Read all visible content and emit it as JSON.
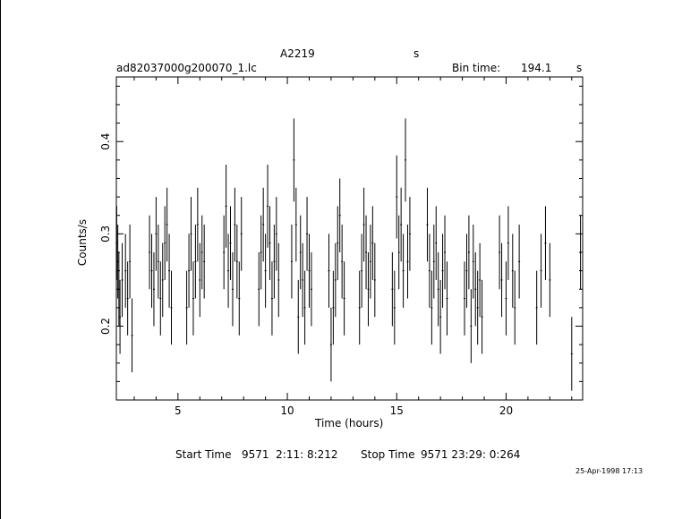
{
  "chart_data": {
    "type": "scatter",
    "title": "A2219",
    "title_suffix": "s",
    "file_label": "ad82037000g200070_1.lc",
    "bin_time_label": "Bin time:",
    "bin_time_value": "194.1",
    "bin_time_unit": "s",
    "xlabel": "Time (hours)",
    "ylabel": "Counts/s",
    "xlim": [
      2.183,
      23.5
    ],
    "ylim": [
      0.12,
      0.47
    ],
    "xticks": [
      5,
      10,
      15,
      20
    ],
    "yticks": [
      0.2,
      0.3,
      0.4
    ],
    "xtick_labels": [
      "5",
      "10",
      "15",
      "20"
    ],
    "ytick_labels": [
      "0.2",
      "0.3",
      "0.4"
    ],
    "error_bars": true,
    "series": [
      {
        "x": [
          2.2,
          2.25,
          2.3,
          2.35,
          2.45,
          2.6,
          2.7,
          2.8,
          2.9,
          3.7,
          3.8,
          3.9,
          4.0,
          4.1,
          4.2,
          4.3,
          4.4,
          4.5,
          4.6,
          4.7,
          5.4,
          5.5,
          5.6,
          5.7,
          5.8,
          5.9,
          6.0,
          6.1,
          6.2,
          7.1,
          7.2,
          7.3,
          7.4,
          7.5,
          7.6,
          7.7,
          7.8,
          7.9,
          8.7,
          8.8,
          8.9,
          9.0,
          9.1,
          9.2,
          9.3,
          9.4,
          9.5,
          9.6,
          10.2,
          10.3,
          10.4,
          10.5,
          10.6,
          10.7,
          10.8,
          10.9,
          11.0,
          11.1,
          11.9,
          12.0,
          12.1,
          12.2,
          12.3,
          12.4,
          12.5,
          12.6,
          13.3,
          13.4,
          13.5,
          13.6,
          13.7,
          13.8,
          13.9,
          14.0,
          14.8,
          14.9,
          15.0,
          15.1,
          15.2,
          15.3,
          15.4,
          15.5,
          15.6,
          16.4,
          16.5,
          16.6,
          16.7,
          16.8,
          16.9,
          17.0,
          17.1,
          17.2,
          17.3,
          18.1,
          18.2,
          18.3,
          18.4,
          18.5,
          18.6,
          18.7,
          18.8,
          18.9,
          19.7,
          19.8,
          20.0,
          20.1,
          20.3,
          20.4,
          20.6,
          21.4,
          21.6,
          21.8,
          22.0,
          23.0,
          23.4
        ],
        "y": [
          0.29,
          0.27,
          0.24,
          0.21,
          0.25,
          0.26,
          0.23,
          0.27,
          0.19,
          0.28,
          0.26,
          0.24,
          0.3,
          0.27,
          0.23,
          0.25,
          0.29,
          0.31,
          0.26,
          0.22,
          0.22,
          0.26,
          0.3,
          0.23,
          0.27,
          0.31,
          0.25,
          0.28,
          0.27,
          0.28,
          0.33,
          0.26,
          0.29,
          0.24,
          0.31,
          0.27,
          0.23,
          0.3,
          0.24,
          0.28,
          0.31,
          0.26,
          0.33,
          0.29,
          0.23,
          0.27,
          0.3,
          0.25,
          0.27,
          0.38,
          0.31,
          0.21,
          0.28,
          0.25,
          0.22,
          0.3,
          0.26,
          0.24,
          0.26,
          0.18,
          0.22,
          0.25,
          0.29,
          0.32,
          0.27,
          0.23,
          0.22,
          0.26,
          0.31,
          0.28,
          0.24,
          0.27,
          0.29,
          0.25,
          0.24,
          0.22,
          0.34,
          0.28,
          0.31,
          0.26,
          0.38,
          0.27,
          0.3,
          0.31,
          0.26,
          0.22,
          0.27,
          0.29,
          0.24,
          0.21,
          0.26,
          0.28,
          0.23,
          0.23,
          0.26,
          0.28,
          0.2,
          0.27,
          0.24,
          0.22,
          0.25,
          0.21,
          0.28,
          0.25,
          0.23,
          0.29,
          0.26,
          0.22,
          0.27,
          0.22,
          0.26,
          0.29,
          0.25,
          0.17,
          0.28
        ],
        "yerr": [
          0.04,
          0.04,
          0.04,
          0.04,
          0.04,
          0.04,
          0.04,
          0.04,
          0.04,
          0.04,
          0.04,
          0.04,
          0.04,
          0.04,
          0.04,
          0.04,
          0.04,
          0.04,
          0.04,
          0.04,
          0.04,
          0.04,
          0.04,
          0.04,
          0.04,
          0.04,
          0.04,
          0.04,
          0.04,
          0.04,
          0.045,
          0.04,
          0.04,
          0.04,
          0.04,
          0.04,
          0.04,
          0.04,
          0.04,
          0.04,
          0.04,
          0.04,
          0.045,
          0.04,
          0.04,
          0.04,
          0.04,
          0.04,
          0.04,
          0.045,
          0.04,
          0.04,
          0.04,
          0.04,
          0.04,
          0.04,
          0.04,
          0.04,
          0.04,
          0.04,
          0.04,
          0.04,
          0.04,
          0.04,
          0.04,
          0.04,
          0.04,
          0.04,
          0.04,
          0.04,
          0.04,
          0.04,
          0.04,
          0.04,
          0.04,
          0.04,
          0.045,
          0.04,
          0.04,
          0.04,
          0.045,
          0.04,
          0.04,
          0.04,
          0.04,
          0.04,
          0.04,
          0.04,
          0.04,
          0.04,
          0.04,
          0.04,
          0.04,
          0.04,
          0.04,
          0.04,
          0.04,
          0.04,
          0.04,
          0.04,
          0.04,
          0.04,
          0.04,
          0.04,
          0.04,
          0.04,
          0.04,
          0.04,
          0.04,
          0.04,
          0.04,
          0.04,
          0.04,
          0.04,
          0.04
        ]
      }
    ]
  },
  "footer": {
    "start_label": "Start Time",
    "start_value": "9571  2:11: 8:212",
    "stop_label": "Stop Time",
    "stop_value": "9571 23:29: 0:264",
    "timestamp": "25-Apr-1998 17:13"
  }
}
